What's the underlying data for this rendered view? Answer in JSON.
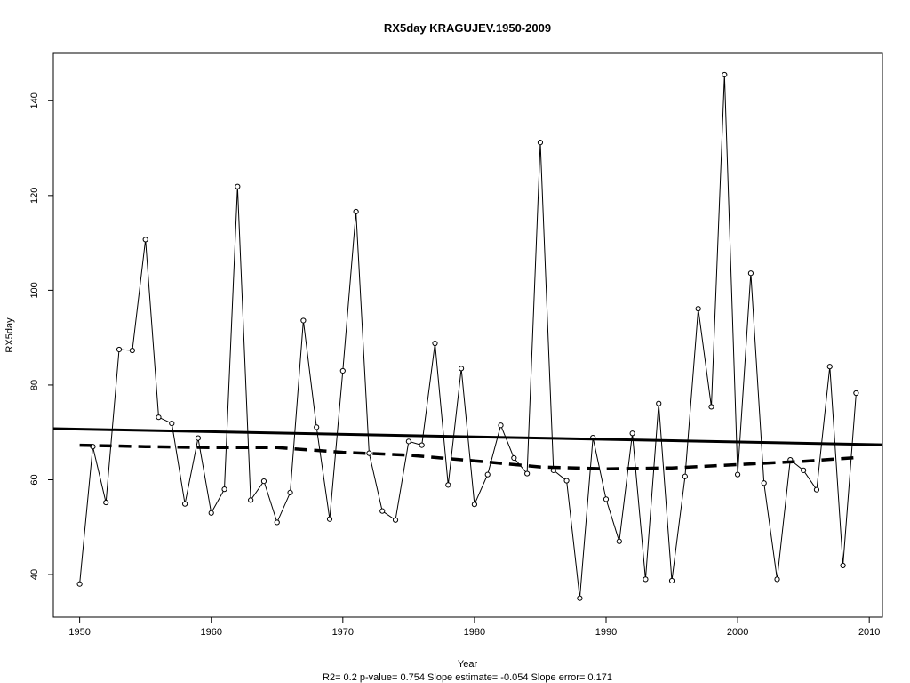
{
  "chart_data": {
    "type": "line",
    "title": "RX5day    KRAGUJEV.1950-2009",
    "xlabel": "Year",
    "ylabel": "RX5day",
    "footer": "R2= 0.2  p-value= 0.754  Slope estimate= -0.054  Slope error= 0.171",
    "xlim": [
      1948,
      2011
    ],
    "ylim": [
      31,
      150
    ],
    "x_ticks": [
      1950,
      1960,
      1970,
      1980,
      1990,
      2000,
      2010
    ],
    "y_ticks": [
      40,
      60,
      80,
      100,
      120,
      140
    ],
    "grid": false,
    "legend": "none",
    "series": [
      {
        "style": "solid-thin-with-circles",
        "x": [
          1950,
          1951,
          1952,
          1953,
          1954,
          1955,
          1956,
          1957,
          1958,
          1959,
          1960,
          1961,
          1962,
          1963,
          1964,
          1965,
          1966,
          1967,
          1968,
          1969,
          1970,
          1971,
          1972,
          1973,
          1974,
          1975,
          1976,
          1977,
          1978,
          1979,
          1980,
          1981,
          1982,
          1983,
          1984,
          1985,
          1986,
          1987,
          1988,
          1989,
          1990,
          1991,
          1992,
          1993,
          1994,
          1995,
          1996,
          1997,
          1998,
          1999,
          2000,
          2001,
          2002,
          2003,
          2004,
          2005,
          2006,
          2007,
          2008,
          2009
        ],
        "y": [
          38,
          67,
          55.2,
          87.5,
          87.3,
          110.7,
          73.2,
          71.9,
          54.9,
          68.8,
          53,
          58,
          121.9,
          55.7,
          59.7,
          51,
          57.3,
          93.6,
          71.1,
          51.7,
          83,
          116.6,
          65.6,
          53.4,
          51.5,
          68.1,
          67.3,
          88.8,
          58.9,
          83.5,
          54.8,
          61.1,
          71.5,
          64.6,
          61.3,
          131.2,
          62,
          59.8,
          35,
          68.9,
          55.9,
          47,
          69.8,
          39,
          76.1,
          38.7,
          60.7,
          96.1,
          75.4,
          145.5,
          61.1,
          103.6,
          59.3,
          39,
          64.2,
          62,
          57.9,
          83.9,
          41.9,
          78.3
        ]
      },
      {
        "style": "solid-thick",
        "x": [
          1948,
          2011
        ],
        "y": [
          70.8,
          67.4
        ]
      },
      {
        "style": "dashed-thick",
        "x": [
          1950,
          1955,
          1960,
          1965,
          1970,
          1975,
          1980,
          1985,
          1990,
          1995,
          2000,
          2005,
          2009
        ],
        "y": [
          67.3,
          67.0,
          66.8,
          66.8,
          65.8,
          65.2,
          64.0,
          62.7,
          62.3,
          62.5,
          63.2,
          63.9,
          64.7
        ]
      }
    ]
  }
}
